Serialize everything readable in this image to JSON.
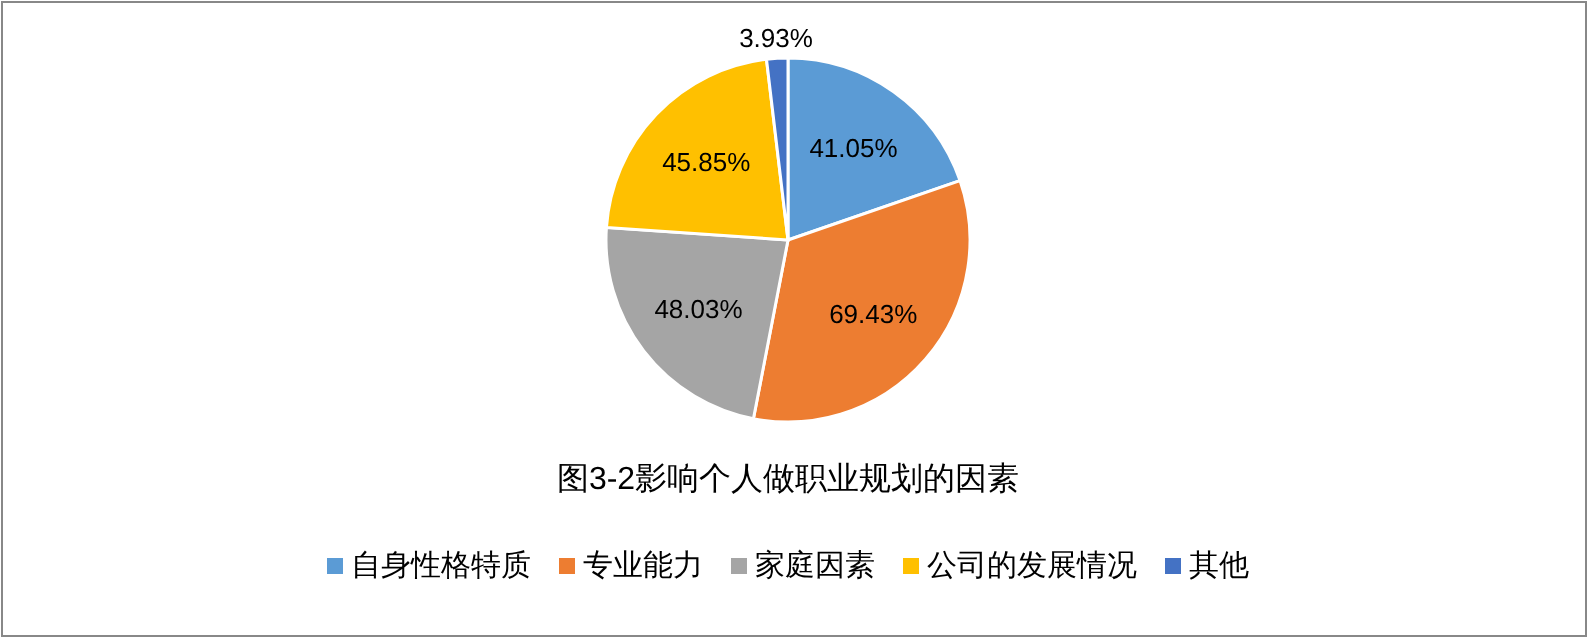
{
  "chart_data": {
    "type": "pie",
    "title": "图3-2影响个人做职业规划的因素",
    "categories": [
      "自身性格特质",
      "专业能力",
      "家庭因素",
      "公司的发展情况",
      "其他"
    ],
    "values": [
      41.05,
      69.43,
      48.03,
      45.85,
      3.93
    ],
    "colors": [
      "#5b9bd5",
      "#ed7d31",
      "#a5a5a5",
      "#ffc000",
      "#4472c4"
    ],
    "value_labels": [
      "41.05%",
      "69.43%",
      "48.03%",
      "45.85%",
      "3.93%"
    ],
    "legend": "bottom"
  }
}
